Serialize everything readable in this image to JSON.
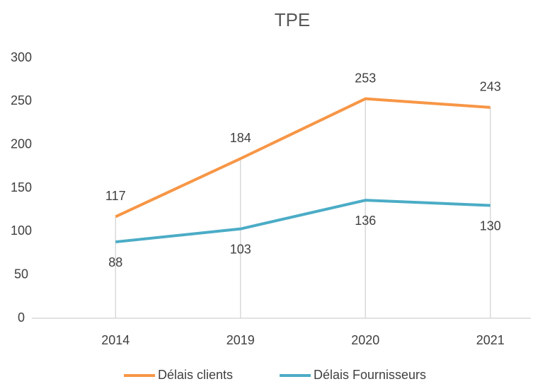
{
  "chart_data": {
    "type": "line",
    "title": "TPE",
    "categories": [
      "2014",
      "2019",
      "2020",
      "2021"
    ],
    "series": [
      {
        "name": "Délais clients",
        "color": "#f79646",
        "values": [
          117,
          184,
          253,
          243
        ]
      },
      {
        "name": "Délais Fournisseurs",
        "color": "#4bacc6",
        "values": [
          88,
          103,
          136,
          130
        ]
      }
    ],
    "ylim": [
      0,
      300
    ],
    "yticks": [
      0,
      50,
      100,
      150,
      200,
      250,
      300
    ],
    "drop_lines": true,
    "data_labels": true,
    "legend": "bottom"
  }
}
